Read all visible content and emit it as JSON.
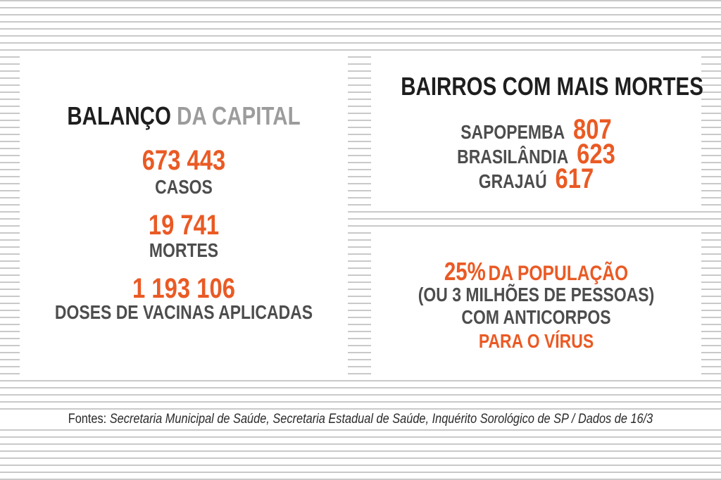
{
  "left_panel": {
    "title_dark": "BALANÇO",
    "title_light": "DA CAPITAL",
    "stats": [
      {
        "value": "673 443",
        "label": "CASOS"
      },
      {
        "value": "19 741",
        "label": "MORTES"
      },
      {
        "value": "1 193 106",
        "label": "DOSES DE VACINAS APLICADAS"
      }
    ]
  },
  "top_right_panel": {
    "title": "BAIRROS COM MAIS MORTES",
    "neighborhoods": [
      {
        "name": "SAPOPEMBA",
        "deaths": "807"
      },
      {
        "name": "BRASILÂNDIA",
        "deaths": "623"
      },
      {
        "name": "GRAJAÚ",
        "deaths": "617"
      }
    ]
  },
  "bottom_right_panel": {
    "percent": "25%",
    "percent_rest": "DA POPULAÇÃO",
    "line2": "(OU 3 MILHÕES DE PESSOAS)",
    "line3": "COM ANTICORPOS",
    "line4": "PARA O VÍRUS"
  },
  "footer": {
    "prefix": "Fontes:",
    "sources": "Secretaria Municipal de Saúde, Secretaria Estadual de Saúde, Inquérito Sorológico de SP / Dados de 16/3"
  },
  "colors": {
    "accent": "#ea5a24",
    "dark_text": "#1e1e1e",
    "gray_text": "#4d4d4d",
    "light_text": "#9c9c9c",
    "stripe": "#c9c9c9"
  }
}
